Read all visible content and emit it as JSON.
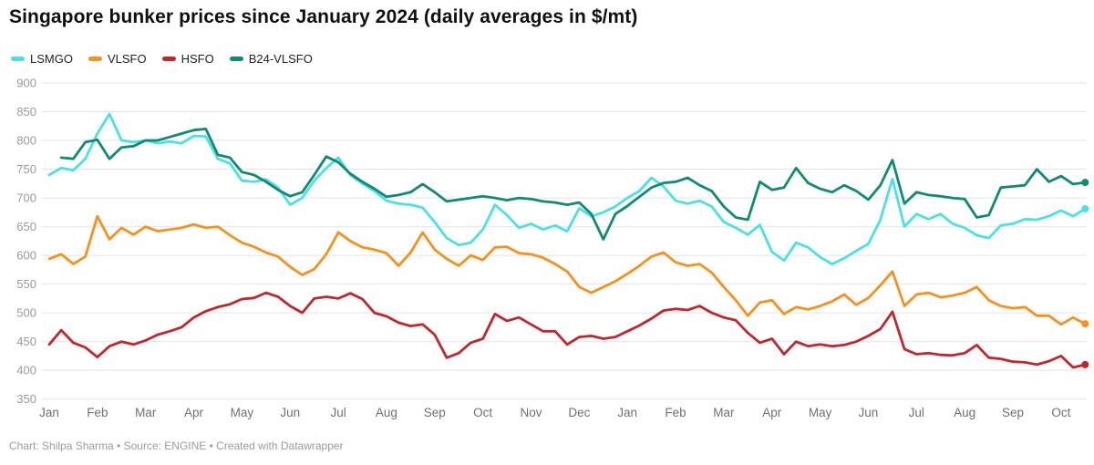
{
  "header": {
    "title": "Singapore bunker prices since January 2024 (daily averages in $/mt)"
  },
  "footer": {
    "credit": "Chart: Shilpa Sharma • Source: ENGINE • Created with Datawrapper"
  },
  "colors": {
    "grid": "#e4e4e4",
    "y_label": "#9a9a9a",
    "x_label": "#707070",
    "title": "#101010",
    "footer": "#9b9b9b"
  },
  "chart_data": {
    "type": "line",
    "title": "Singapore bunker prices since January 2024 (daily averages in $/mt)",
    "unit": "$/mt",
    "legend_position": "top-left",
    "grid": true,
    "x_axis": {
      "start": "Jan 2024",
      "end": "Oct 2025",
      "tick_labels": [
        "Jan",
        "Feb",
        "Mar",
        "Apr",
        "May",
        "Jun",
        "Jul",
        "Aug",
        "Sep",
        "Oct",
        "Nov",
        "Dec",
        "Jan",
        "Feb",
        "Mar",
        "Apr",
        "May",
        "Jun",
        "Jul",
        "Aug",
        "Sep",
        "Oct"
      ]
    },
    "y_axis": {
      "min": 350,
      "max": 900,
      "step": 50,
      "ticks": [
        900,
        850,
        800,
        750,
        700,
        650,
        600,
        550,
        500,
        450,
        400,
        350
      ]
    },
    "sampling": "values estimated from daily curve at ~weekly intervals (4 per month), Jan 2024 to mid-Oct 2025",
    "points_per_month": 4,
    "series": [
      {
        "name": "LSMGO",
        "color": "#4be0e3",
        "end_value": 681,
        "values": [
          740,
          752,
          748,
          768,
          812,
          846,
          800,
          797,
          800,
          795,
          798,
          795,
          808,
          807,
          768,
          760,
          730,
          728,
          732,
          718,
          688,
          700,
          730,
          752,
          770,
          740,
          725,
          712,
          695,
          690,
          688,
          683,
          658,
          630,
          618,
          622,
          645,
          688,
          670,
          648,
          655,
          645,
          652,
          642,
          682,
          668,
          675,
          685,
          700,
          712,
          735,
          720,
          695,
          690,
          695,
          685,
          658,
          648,
          636,
          653,
          606,
          591,
          622,
          614,
          597,
          585,
          595,
          608,
          620,
          662,
          733,
          650,
          672,
          663,
          672,
          655,
          648,
          635,
          630,
          652,
          655,
          663,
          662,
          668,
          678,
          668,
          681
        ]
      },
      {
        "name": "VLSFO",
        "color": "#f5911d",
        "end_value": 481,
        "values": [
          594,
          602,
          585,
          598,
          668,
          628,
          648,
          636,
          650,
          642,
          645,
          648,
          654,
          648,
          650,
          635,
          622,
          615,
          605,
          598,
          580,
          566,
          576,
          602,
          640,
          625,
          614,
          610,
          604,
          582,
          605,
          640,
          610,
          594,
          582,
          600,
          592,
          614,
          615,
          604,
          602,
          596,
          585,
          572,
          545,
          535,
          545,
          555,
          568,
          582,
          598,
          605,
          588,
          582,
          585,
          570,
          545,
          522,
          495,
          518,
          522,
          498,
          510,
          506,
          512,
          520,
          532,
          514,
          526,
          548,
          572,
          512,
          532,
          535,
          527,
          530,
          535,
          545,
          522,
          512,
          508,
          510,
          495,
          495,
          480,
          492,
          481
        ]
      },
      {
        "name": "HSFO",
        "color": "#c2262d",
        "end_value": 410,
        "values": [
          445,
          470,
          448,
          440,
          423,
          442,
          450,
          445,
          452,
          462,
          468,
          475,
          492,
          503,
          510,
          515,
          524,
          526,
          535,
          528,
          512,
          500,
          525,
          528,
          525,
          534,
          524,
          500,
          494,
          483,
          477,
          480,
          462,
          422,
          430,
          448,
          455,
          498,
          486,
          492,
          480,
          468,
          468,
          445,
          458,
          460,
          455,
          458,
          468,
          478,
          490,
          504,
          507,
          505,
          512,
          500,
          492,
          487,
          465,
          448,
          455,
          428,
          450,
          442,
          445,
          442,
          444,
          450,
          460,
          472,
          502,
          437,
          428,
          430,
          427,
          426,
          430,
          444,
          422,
          420,
          415,
          414,
          410,
          416,
          425,
          405,
          410
        ]
      },
      {
        "name": "B24-VLSFO",
        "color": "#0e8b71",
        "end_value": 727,
        "values": [
          null,
          770,
          768,
          797,
          801,
          768,
          788,
          790,
          800,
          800,
          806,
          812,
          818,
          820,
          775,
          770,
          745,
          740,
          728,
          714,
          703,
          710,
          740,
          772,
          762,
          742,
          728,
          716,
          702,
          705,
          710,
          724,
          710,
          694,
          697,
          700,
          703,
          700,
          696,
          700,
          698,
          694,
          692,
          688,
          692,
          672,
          628,
          672,
          686,
          702,
          718,
          726,
          728,
          735,
          722,
          712,
          685,
          666,
          662,
          728,
          714,
          718,
          752,
          726,
          716,
          710,
          722,
          712,
          697,
          722,
          766,
          690,
          710,
          705,
          703,
          700,
          698,
          666,
          670,
          718,
          720,
          722,
          750,
          728,
          738,
          724,
          727
        ]
      }
    ]
  }
}
